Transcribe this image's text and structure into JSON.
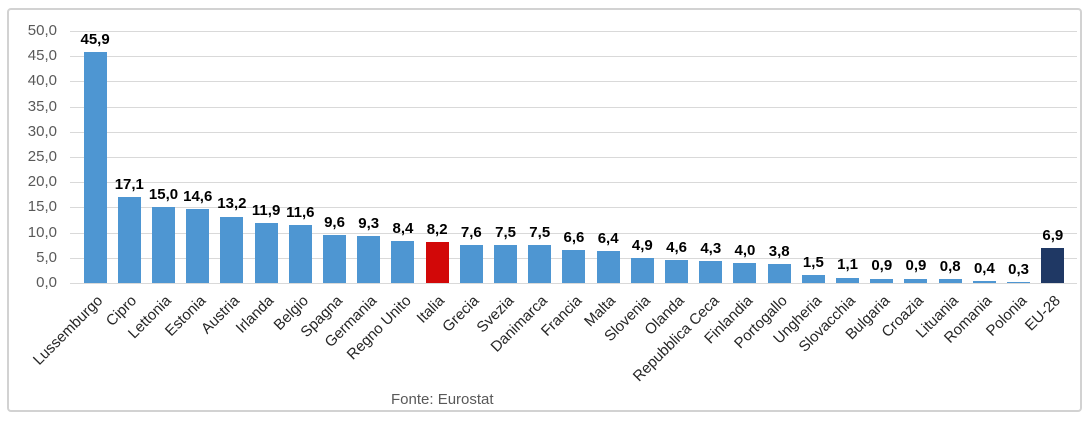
{
  "chart_data": {
    "type": "bar",
    "categories": [
      "Lussemburgo",
      "Cipro",
      "Lettonia",
      "Estonia",
      "Austria",
      "Irlanda",
      "Belgio",
      "Spagna",
      "Germania",
      "Regno Unito",
      "Italia",
      "Grecia",
      "Svezia",
      "Danimarca",
      "Francia",
      "Malta",
      "Slovenia",
      "Olanda",
      "Repubblica Ceca",
      "Finlandia",
      "Portogallo",
      "Ungheria",
      "Slovacchia",
      "Bulgaria",
      "Croazia",
      "Lituania",
      "Romania",
      "Polonia",
      "EU-28"
    ],
    "values": [
      45.9,
      17.1,
      15.0,
      14.6,
      13.2,
      11.9,
      11.6,
      9.6,
      9.3,
      8.4,
      8.2,
      7.6,
      7.5,
      7.5,
      6.6,
      6.4,
      4.9,
      4.6,
      4.3,
      4.0,
      3.8,
      1.5,
      1.1,
      0.9,
      0.9,
      0.8,
      0.4,
      0.3,
      6.9
    ],
    "value_labels": [
      "45,9",
      "17,1",
      "15,0",
      "14,6",
      "13,2",
      "11,9",
      "11,6",
      "9,6",
      "9,3",
      "8,4",
      "8,2",
      "7,6",
      "7,5",
      "7,5",
      "6,6",
      "6,4",
      "4,9",
      "4,6",
      "4,3",
      "4,0",
      "3,8",
      "1,5",
      "1,1",
      "0,9",
      "0,9",
      "0,8",
      "0,4",
      "0,3",
      "6,9"
    ],
    "title": "",
    "xlabel": "",
    "ylabel": "",
    "ylim": [
      0,
      50
    ],
    "ytick_step": 5,
    "ytick_labels": [
      "0,0",
      "5,0",
      "10,0",
      "15,0",
      "20,0",
      "25,0",
      "30,0",
      "35,0",
      "40,0",
      "45,0",
      "50,0"
    ],
    "grid": true,
    "legend_position": "none",
    "colors": {
      "bar_default": "#4e96d2",
      "gridline": "#d9d9d9",
      "axis_text": "#595959",
      "category_text": "#262626",
      "value_label_text": "#000000",
      "highlights": [
        {
          "category": "Italia",
          "color": "#d20808"
        },
        {
          "category": "EU-28",
          "color": "#1f3864"
        }
      ]
    },
    "source_note": "Fonte: Eurostat"
  }
}
